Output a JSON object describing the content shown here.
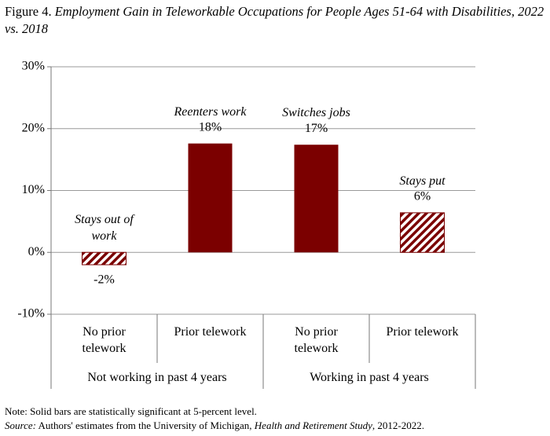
{
  "chart_data": {
    "type": "bar",
    "figure_label": "Figure 4.",
    "title": "Employment Gain in Teleworkable Occupations for People Ages 51-64 with Disabilities, 2022 vs. 2018",
    "categories": [
      "No prior telework",
      "Prior telework",
      "No prior telework",
      "Prior telework"
    ],
    "groups": [
      "Not working in past 4 years",
      "Working in past 4 years"
    ],
    "annotations": [
      "Stays out of work",
      "Reenters work",
      "Switches jobs",
      "Stays put"
    ],
    "values": [
      -2,
      17.6,
      17.4,
      6.4
    ],
    "value_labels": [
      "-2%",
      "18%",
      "17%",
      "6%"
    ],
    "solid": [
      false,
      true,
      true,
      false
    ],
    "color": "#7b0000",
    "ylim": [
      -10,
      30
    ],
    "yticks": [
      {
        "value": -10,
        "label": "-10%"
      },
      {
        "value": 0,
        "label": "0%"
      },
      {
        "value": 10,
        "label": "10%"
      },
      {
        "value": 20,
        "label": "20%"
      },
      {
        "value": 30,
        "label": "30%"
      }
    ],
    "grid": true,
    "note": "Note: Solid bars are statistically significant at 5-percent level.",
    "source_label": "Source:",
    "source_parts": [
      " Authors' estimates from the University of Michigan, ",
      "Health and Retirement Study",
      ", 2012-2022."
    ]
  }
}
